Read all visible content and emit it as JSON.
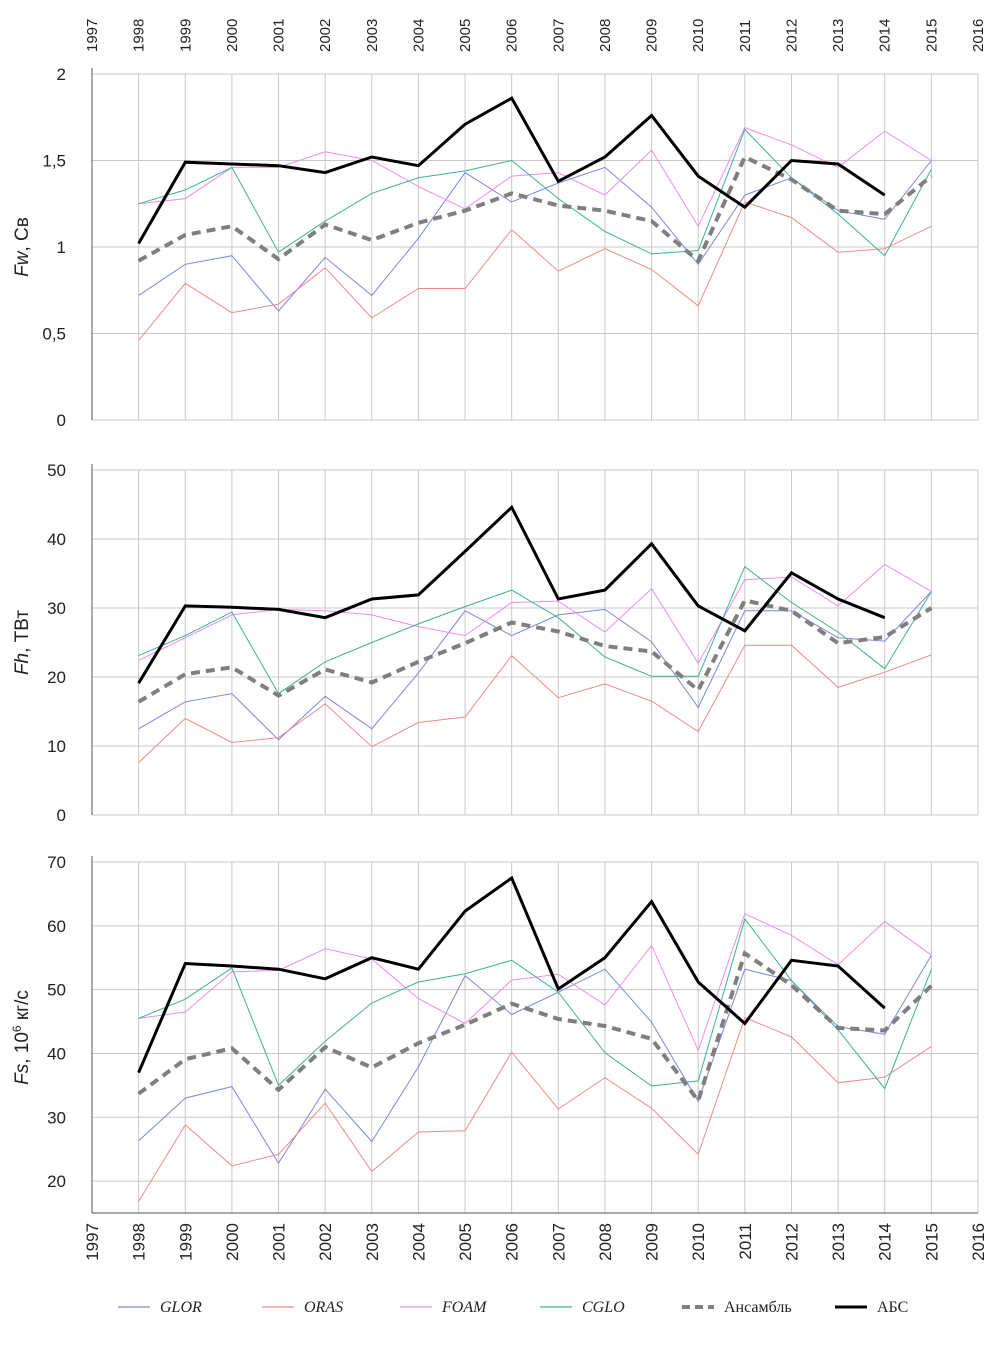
{
  "colors": {
    "GLOR": "#7f86d9",
    "ORAS": "#f08a8a",
    "FOAM": "#f28ce6",
    "CGLO": "#3fb28f",
    "ensemble": "#7f7f7f",
    "abs": "#000000",
    "grid": "#c8c8c8",
    "axis": "#555555"
  },
  "x_axis": {
    "ticks": [
      "1997",
      "1998",
      "1999",
      "2000",
      "2001",
      "2002",
      "2003",
      "2004",
      "2005",
      "2006",
      "2007",
      "2008",
      "2009",
      "2010",
      "2011",
      "2012",
      "2013",
      "2014",
      "2015",
      "2016"
    ],
    "range": [
      1997,
      2016
    ]
  },
  "chart_data": [
    {
      "type": "line",
      "ylabel_main": "Fw",
      "ylabel_unit": ", Св",
      "ylim": [
        0,
        2
      ],
      "yticks": [
        0,
        0.5,
        1,
        1.5,
        2
      ],
      "ytick_labels": [
        "0",
        "0,5",
        "1",
        "1,5",
        "2"
      ],
      "grid": true,
      "series": [
        {
          "name": "GLOR",
          "x": [
            1998,
            1999,
            2000,
            2001,
            2002,
            2003,
            2004,
            2005,
            2006,
            2007,
            2008,
            2009,
            2010,
            2011,
            2012,
            2013,
            2014,
            2015
          ],
          "values": [
            0.72,
            0.9,
            0.95,
            0.63,
            0.94,
            0.72,
            1.05,
            1.43,
            1.26,
            1.37,
            1.46,
            1.23,
            0.9,
            1.3,
            1.4,
            1.21,
            1.16,
            1.5
          ]
        },
        {
          "name": "ORAS",
          "x": [
            1998,
            1999,
            2000,
            2001,
            2002,
            2003,
            2004,
            2005,
            2006,
            2007,
            2008,
            2009,
            2010,
            2011,
            2012,
            2013,
            2014,
            2015
          ],
          "values": [
            0.46,
            0.79,
            0.62,
            0.67,
            0.88,
            0.59,
            0.76,
            0.76,
            1.1,
            0.86,
            0.99,
            0.87,
            0.66,
            1.26,
            1.17,
            0.97,
            0.99,
            1.12
          ]
        },
        {
          "name": "FOAM",
          "x": [
            1998,
            1999,
            2000,
            2001,
            2002,
            2003,
            2004,
            2005,
            2006,
            2007,
            2008,
            2009,
            2010,
            2011,
            2012,
            2013,
            2014,
            2015
          ],
          "values": [
            1.25,
            1.28,
            1.46,
            1.46,
            1.55,
            1.5,
            1.35,
            1.22,
            1.41,
            1.43,
            1.3,
            1.56,
            1.12,
            1.69,
            1.59,
            1.46,
            1.67,
            1.5
          ]
        },
        {
          "name": "CGLO",
          "x": [
            1998,
            1999,
            2000,
            2001,
            2002,
            2003,
            2004,
            2005,
            2006,
            2007,
            2008,
            2009,
            2010,
            2011,
            2012,
            2013,
            2014,
            2015
          ],
          "values": [
            1.25,
            1.33,
            1.46,
            0.97,
            1.15,
            1.31,
            1.4,
            1.44,
            1.5,
            1.28,
            1.09,
            0.96,
            0.98,
            1.68,
            1.4,
            1.19,
            0.95,
            1.45
          ]
        },
        {
          "name": "Ансамбль",
          "x": [
            1998,
            1999,
            2000,
            2001,
            2002,
            2003,
            2004,
            2005,
            2006,
            2007,
            2008,
            2009,
            2010,
            2011,
            2012,
            2013,
            2014,
            2015
          ],
          "values": [
            0.92,
            1.07,
            1.12,
            0.93,
            1.13,
            1.04,
            1.14,
            1.21,
            1.31,
            1.24,
            1.21,
            1.15,
            0.92,
            1.52,
            1.39,
            1.21,
            1.19,
            1.41
          ]
        },
        {
          "name": "АБС",
          "x": [
            1998,
            1999,
            2000,
            2001,
            2002,
            2003,
            2004,
            2005,
            2006,
            2007,
            2008,
            2009,
            2010,
            2011,
            2012,
            2013,
            2014
          ],
          "values": [
            1.02,
            1.49,
            1.48,
            1.47,
            1.43,
            1.52,
            1.47,
            1.71,
            1.86,
            1.38,
            1.52,
            1.76,
            1.41,
            1.23,
            1.5,
            1.48,
            1.3
          ]
        }
      ]
    },
    {
      "type": "line",
      "ylabel_main": "Fh",
      "ylabel_unit": ", ТВт",
      "ylim": [
        0,
        50
      ],
      "yticks": [
        0,
        10,
        20,
        30,
        40,
        50
      ],
      "ytick_labels": [
        "0",
        "10",
        "20",
        "30",
        "40",
        "50"
      ],
      "grid": true,
      "series": [
        {
          "name": "GLOR",
          "x": [
            1998,
            1999,
            2000,
            2001,
            2002,
            2003,
            2004,
            2005,
            2006,
            2007,
            2008,
            2009,
            2010,
            2011,
            2012,
            2013,
            2014,
            2015
          ],
          "values": [
            12.5,
            16.4,
            17.6,
            10.9,
            17.2,
            12.5,
            20.6,
            29.6,
            26.0,
            29.0,
            29.8,
            25.1,
            15.6,
            29.6,
            29.6,
            25.7,
            25.2,
            32.4
          ]
        },
        {
          "name": "ORAS",
          "x": [
            1998,
            1999,
            2000,
            2001,
            2002,
            2003,
            2004,
            2005,
            2006,
            2007,
            2008,
            2009,
            2010,
            2011,
            2012,
            2013,
            2014,
            2015
          ],
          "values": [
            7.6,
            14.0,
            10.5,
            11.2,
            16.1,
            9.9,
            13.4,
            14.2,
            23.1,
            17.0,
            19.0,
            16.5,
            12.1,
            24.6,
            24.6,
            18.5,
            20.7,
            23.2
          ]
        },
        {
          "name": "FOAM",
          "x": [
            1998,
            1999,
            2000,
            2001,
            2002,
            2003,
            2004,
            2005,
            2006,
            2007,
            2008,
            2009,
            2010,
            2011,
            2012,
            2013,
            2014,
            2015
          ],
          "values": [
            22.4,
            25.7,
            29.0,
            29.8,
            29.6,
            29.0,
            27.3,
            26.0,
            30.8,
            31.0,
            26.5,
            32.8,
            22.0,
            34.1,
            34.5,
            30.3,
            36.3,
            32.4
          ]
        },
        {
          "name": "CGLO",
          "x": [
            1998,
            1999,
            2000,
            2001,
            2002,
            2003,
            2004,
            2005,
            2006,
            2007,
            2008,
            2009,
            2010,
            2011,
            2012,
            2013,
            2014,
            2015
          ],
          "values": [
            23.1,
            26.0,
            29.4,
            17.6,
            22.2,
            25.0,
            27.7,
            30.2,
            32.6,
            28.6,
            22.9,
            20.1,
            20.1,
            36.0,
            30.8,
            26.5,
            21.2,
            32.4
          ]
        },
        {
          "name": "Ансамбль",
          "x": [
            1998,
            1999,
            2000,
            2001,
            2002,
            2003,
            2004,
            2005,
            2006,
            2007,
            2008,
            2009,
            2010,
            2011,
            2012,
            2013,
            2014,
            2015
          ],
          "values": [
            16.4,
            20.4,
            21.4,
            17.3,
            21.1,
            19.2,
            22.2,
            24.9,
            27.9,
            26.6,
            24.5,
            23.7,
            18.1,
            31.1,
            29.6,
            24.9,
            25.8,
            30.0
          ]
        },
        {
          "name": "АБС",
          "x": [
            1998,
            1999,
            2000,
            2001,
            2002,
            2003,
            2004,
            2005,
            2006,
            2007,
            2008,
            2009,
            2010,
            2011,
            2012,
            2013,
            2014
          ],
          "values": [
            19.1,
            30.3,
            30.1,
            29.8,
            28.6,
            31.3,
            31.9,
            38.2,
            44.6,
            31.3,
            32.6,
            39.3,
            30.3,
            26.7,
            35.1,
            31.3,
            28.6
          ]
        }
      ]
    },
    {
      "type": "line",
      "ylabel_main": "Fs",
      "ylabel_unit": ", 10",
      "ylabel_sup": "6",
      "ylabel_unit2": " кг/с",
      "ylim": [
        15,
        70
      ],
      "yticks": [
        20,
        30,
        40,
        50,
        60,
        70
      ],
      "ytick_labels": [
        "20",
        "30",
        "40",
        "50",
        "60",
        "70"
      ],
      "grid": true,
      "series": [
        {
          "name": "GLOR",
          "x": [
            1998,
            1999,
            2000,
            2001,
            2002,
            2003,
            2004,
            2005,
            2006,
            2007,
            2008,
            2009,
            2010,
            2011,
            2012,
            2013,
            2014,
            2015
          ],
          "values": [
            26.3,
            33.0,
            34.8,
            22.8,
            34.4,
            26.2,
            37.9,
            52.2,
            46.1,
            49.6,
            53.2,
            44.9,
            32.5,
            53.2,
            51.4,
            44.2,
            43.0,
            55.4
          ]
        },
        {
          "name": "ORAS",
          "x": [
            1998,
            1999,
            2000,
            2001,
            2002,
            2003,
            2004,
            2005,
            2006,
            2007,
            2008,
            2009,
            2010,
            2011,
            2012,
            2013,
            2014,
            2015
          ],
          "values": [
            16.8,
            28.8,
            22.4,
            24.2,
            32.2,
            21.5,
            27.7,
            27.9,
            40.2,
            31.3,
            36.2,
            31.4,
            24.2,
            45.6,
            42.6,
            35.4,
            36.3,
            41.1
          ]
        },
        {
          "name": "FOAM",
          "x": [
            1998,
            1999,
            2000,
            2001,
            2002,
            2003,
            2004,
            2005,
            2006,
            2007,
            2008,
            2009,
            2010,
            2011,
            2012,
            2013,
            2014,
            2015
          ],
          "values": [
            45.5,
            46.5,
            52.8,
            53.0,
            56.4,
            54.8,
            48.6,
            44.7,
            51.5,
            52.4,
            47.6,
            56.9,
            40.5,
            61.9,
            58.5,
            53.9,
            60.7,
            55.4
          ]
        },
        {
          "name": "CGLO",
          "x": [
            1998,
            1999,
            2000,
            2001,
            2002,
            2003,
            2004,
            2005,
            2006,
            2007,
            2008,
            2009,
            2010,
            2011,
            2012,
            2013,
            2014,
            2015
          ],
          "values": [
            45.5,
            48.5,
            53.4,
            35.0,
            41.9,
            47.9,
            51.2,
            52.5,
            54.6,
            49.6,
            40.1,
            34.9,
            35.7,
            61.1,
            51.4,
            43.7,
            34.5,
            53.2
          ]
        },
        {
          "name": "Ансамбль",
          "x": [
            1998,
            1999,
            2000,
            2001,
            2002,
            2003,
            2004,
            2005,
            2006,
            2007,
            2008,
            2009,
            2010,
            2011,
            2012,
            2013,
            2014,
            2015
          ],
          "values": [
            33.7,
            39.1,
            40.8,
            34.3,
            41.0,
            37.8,
            41.6,
            44.5,
            47.8,
            45.4,
            44.3,
            42.3,
            32.6,
            55.7,
            50.7,
            44.0,
            43.6,
            50.6
          ]
        },
        {
          "name": "АБС",
          "x": [
            1998,
            1999,
            2000,
            2001,
            2002,
            2003,
            2004,
            2005,
            2006,
            2007,
            2008,
            2009,
            2010,
            2011,
            2012,
            2013,
            2014
          ],
          "values": [
            37.0,
            54.1,
            53.7,
            53.2,
            51.7,
            55.0,
            53.2,
            62.3,
            67.5,
            50.1,
            55.0,
            63.8,
            51.2,
            44.7,
            54.6,
            53.7,
            47.1
          ]
        }
      ]
    }
  ],
  "legend": [
    {
      "key": "GLOR",
      "label": "GLOR",
      "italic": true
    },
    {
      "key": "ORAS",
      "label": "ORAS",
      "italic": true
    },
    {
      "key": "FOAM",
      "label": "FOAM",
      "italic": true
    },
    {
      "key": "CGLO",
      "label": "CGLO",
      "italic": true
    },
    {
      "key": "ensemble",
      "label": "Ансамбль",
      "italic": false
    },
    {
      "key": "abs",
      "label": "АБС",
      "italic": false
    }
  ]
}
